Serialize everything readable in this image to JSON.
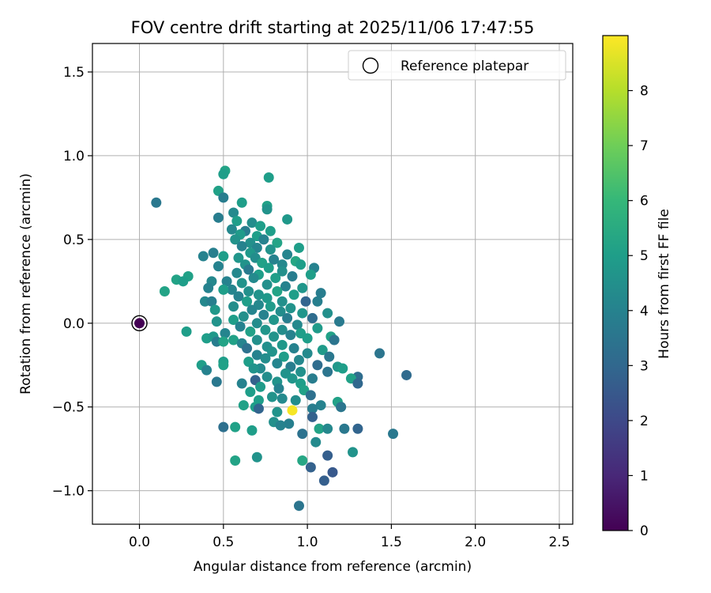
{
  "chart_data": {
    "type": "scatter",
    "title": "FOV centre drift starting at 2025/11/06 17:47:55",
    "xlabel": "Angular distance from reference (arcmin)",
    "ylabel": "Rotation from reference (arcmin)",
    "xlim": [
      -0.28,
      2.58
    ],
    "ylim": [
      -1.2,
      1.67
    ],
    "xticks": [
      0.0,
      0.5,
      1.0,
      1.5,
      2.0,
      2.5
    ],
    "xtick_labels": [
      "0.0",
      "0.5",
      "1.0",
      "1.5",
      "2.0",
      "2.5"
    ],
    "yticks": [
      -1.0,
      -0.5,
      0.0,
      0.5,
      1.0,
      1.5
    ],
    "ytick_labels": [
      "−1.0",
      "−0.5",
      "0.0",
      "0.5",
      "1.0",
      "1.5"
    ],
    "grid": true,
    "legend": {
      "position": "top-right",
      "entries": [
        "Reference platepar"
      ]
    },
    "colorbar": {
      "label": "Hours from first FF file",
      "min": 0,
      "max": 9,
      "ticks": [
        0,
        1,
        2,
        3,
        4,
        5,
        6,
        7,
        8
      ],
      "tick_labels": [
        "0",
        "1",
        "2",
        "3",
        "4",
        "5",
        "6",
        "7",
        "8"
      ],
      "colormap": [
        "#440154",
        "#482878",
        "#3e4989",
        "#31688e",
        "#26828e",
        "#1f9e89",
        "#35b779",
        "#6ece58",
        "#b5de2b",
        "#fde725"
      ]
    },
    "reference_point": {
      "x": 0.0,
      "y": 0.0,
      "hours": 0.0
    },
    "points": [
      [
        0.1,
        0.72,
        3.6
      ],
      [
        0.51,
        0.91,
        5.2
      ],
      [
        0.5,
        0.89,
        5.0
      ],
      [
        0.77,
        0.87,
        5.0
      ],
      [
        0.47,
        0.79,
        5.1
      ],
      [
        0.5,
        0.75,
        3.8
      ],
      [
        0.61,
        0.72,
        5.0
      ],
      [
        0.76,
        0.7,
        5.1
      ],
      [
        0.76,
        0.68,
        4.6
      ],
      [
        0.56,
        0.66,
        4.3
      ],
      [
        0.47,
        0.63,
        3.8
      ],
      [
        0.88,
        0.62,
        4.8
      ],
      [
        0.58,
        0.61,
        5.0
      ],
      [
        0.67,
        0.6,
        4.4
      ],
      [
        0.72,
        0.58,
        5.0
      ],
      [
        0.55,
        0.56,
        4.2
      ],
      [
        0.63,
        0.55,
        3.8
      ],
      [
        0.78,
        0.55,
        5.0
      ],
      [
        0.6,
        0.53,
        4.9
      ],
      [
        0.7,
        0.52,
        5.0
      ],
      [
        0.57,
        0.5,
        4.6
      ],
      [
        0.74,
        0.5,
        4.0
      ],
      [
        0.66,
        0.48,
        4.5
      ],
      [
        0.82,
        0.48,
        5.2
      ],
      [
        0.61,
        0.46,
        4.0
      ],
      [
        0.7,
        0.45,
        4.1
      ],
      [
        0.95,
        0.45,
        5.0
      ],
      [
        0.78,
        0.44,
        4.6
      ],
      [
        0.66,
        0.42,
        4.8
      ],
      [
        0.44,
        0.42,
        3.9
      ],
      [
        0.88,
        0.41,
        4.1
      ],
      [
        0.38,
        0.4,
        4.0
      ],
      [
        0.5,
        0.4,
        5.0
      ],
      [
        0.59,
        0.39,
        4.7
      ],
      [
        0.69,
        0.39,
        4.4
      ],
      [
        0.8,
        0.38,
        4.0
      ],
      [
        0.93,
        0.37,
        5.3
      ],
      [
        0.73,
        0.36,
        5.1
      ],
      [
        0.63,
        0.35,
        4.6
      ],
      [
        0.85,
        0.35,
        4.2
      ],
      [
        0.96,
        0.35,
        5.0
      ],
      [
        0.47,
        0.34,
        4.0
      ],
      [
        0.77,
        0.33,
        5.0
      ],
      [
        1.04,
        0.33,
        4.0
      ],
      [
        0.65,
        0.32,
        3.7
      ],
      [
        0.85,
        0.31,
        4.5
      ],
      [
        0.58,
        0.3,
        4.2
      ],
      [
        0.71,
        0.29,
        5.0
      ],
      [
        0.91,
        0.28,
        3.8
      ],
      [
        1.02,
        0.29,
        5.0
      ],
      [
        0.29,
        0.28,
        5.1
      ],
      [
        0.43,
        0.25,
        4.2
      ],
      [
        0.52,
        0.25,
        4.0
      ],
      [
        0.68,
        0.27,
        4.3
      ],
      [
        0.81,
        0.27,
        5.0
      ],
      [
        0.22,
        0.26,
        5.2
      ],
      [
        0.26,
        0.25,
        5.0
      ],
      [
        0.61,
        0.24,
        4.6
      ],
      [
        0.76,
        0.23,
        4.5
      ],
      [
        0.87,
        0.22,
        4.0
      ],
      [
        0.97,
        0.21,
        4.7
      ],
      [
        0.41,
        0.21,
        4.0
      ],
      [
        0.55,
        0.2,
        4.1
      ],
      [
        0.5,
        0.2,
        5.0
      ],
      [
        0.65,
        0.19,
        4.5
      ],
      [
        0.82,
        0.19,
        5.2
      ],
      [
        0.15,
        0.19,
        5.2
      ],
      [
        0.71,
        0.17,
        4.6
      ],
      [
        0.92,
        0.17,
        5.0
      ],
      [
        1.08,
        0.18,
        3.8
      ],
      [
        0.59,
        0.16,
        4.0
      ],
      [
        0.76,
        0.15,
        4.8
      ],
      [
        0.39,
        0.13,
        4.2
      ],
      [
        0.43,
        0.13,
        3.9
      ],
      [
        0.64,
        0.13,
        5.0
      ],
      [
        0.85,
        0.13,
        4.5
      ],
      [
        0.99,
        0.13,
        2.9
      ],
      [
        1.06,
        0.13,
        3.9
      ],
      [
        0.71,
        0.11,
        4.2
      ],
      [
        0.78,
        0.1,
        4.9
      ],
      [
        0.56,
        0.1,
        4.4
      ],
      [
        0.9,
        0.09,
        4.6
      ],
      [
        0.45,
        0.08,
        4.8
      ],
      [
        0.67,
        0.08,
        4.1
      ],
      [
        0.84,
        0.07,
        4.4
      ],
      [
        0.97,
        0.06,
        4.7
      ],
      [
        1.12,
        0.06,
        4.5
      ],
      [
        0.74,
        0.05,
        4.0
      ],
      [
        0.62,
        0.04,
        4.5
      ],
      [
        0.88,
        0.03,
        3.8
      ],
      [
        1.03,
        0.03,
        3.2
      ],
      [
        0.56,
        0.02,
        5.0
      ],
      [
        0.8,
        0.02,
        4.7
      ],
      [
        0.46,
        0.01,
        4.6
      ],
      [
        0.7,
        0.0,
        4.4
      ],
      [
        0.94,
        -0.01,
        4.2
      ],
      [
        1.19,
        0.01,
        3.7
      ],
      [
        0.6,
        -0.02,
        4.0
      ],
      [
        1.06,
        -0.03,
        4.9
      ],
      [
        0.85,
        -0.04,
        4.4
      ],
      [
        0.75,
        -0.04,
        4.7
      ],
      [
        0.66,
        -0.05,
        5.1
      ],
      [
        0.28,
        -0.05,
        5.0
      ],
      [
        0.51,
        -0.06,
        4.1
      ],
      [
        0.96,
        -0.06,
        5.0
      ],
      [
        0.9,
        -0.07,
        4.0
      ],
      [
        0.8,
        -0.08,
        4.6
      ],
      [
        1.14,
        -0.08,
        5.1
      ],
      [
        0.4,
        -0.09,
        5.0
      ],
      [
        0.44,
        -0.08,
        4.8
      ],
      [
        0.56,
        -0.1,
        5.1
      ],
      [
        0.7,
        -0.1,
        4.5
      ],
      [
        1.0,
        -0.09,
        5.0
      ],
      [
        1.16,
        -0.1,
        3.5
      ],
      [
        0.46,
        -0.11,
        3.8
      ],
      [
        0.5,
        -0.11,
        5.2
      ],
      [
        0.61,
        -0.12,
        4.1
      ],
      [
        0.85,
        -0.13,
        4.8
      ],
      [
        0.76,
        -0.14,
        4.5
      ],
      [
        0.64,
        -0.15,
        3.4
      ],
      [
        0.92,
        -0.15,
        4.0
      ],
      [
        1.09,
        -0.16,
        4.9
      ],
      [
        0.79,
        -0.17,
        4.6
      ],
      [
        1.0,
        -0.18,
        4.3
      ],
      [
        0.7,
        -0.19,
        4.0
      ],
      [
        0.86,
        -0.2,
        5.0
      ],
      [
        1.13,
        -0.2,
        3.6
      ],
      [
        0.75,
        -0.21,
        4.4
      ],
      [
        0.95,
        -0.22,
        4.2
      ],
      [
        0.65,
        -0.23,
        5.0
      ],
      [
        0.5,
        -0.23,
        5.0
      ],
      [
        0.37,
        -0.25,
        5.0
      ],
      [
        1.43,
        -0.18,
        3.5
      ],
      [
        0.82,
        -0.24,
        4.1
      ],
      [
        1.06,
        -0.25,
        3.2
      ],
      [
        1.18,
        -0.26,
        4.8
      ],
      [
        0.9,
        -0.26,
        3.8
      ],
      [
        0.5,
        -0.25,
        5.1
      ],
      [
        0.72,
        -0.27,
        4.3
      ],
      [
        1.21,
        -0.27,
        5.0
      ],
      [
        0.4,
        -0.28,
        4.0
      ],
      [
        0.96,
        -0.29,
        4.5
      ],
      [
        1.12,
        -0.29,
        3.5
      ],
      [
        0.68,
        -0.27,
        4.6
      ],
      [
        0.87,
        -0.3,
        4.6
      ],
      [
        1.59,
        -0.31,
        3.1
      ],
      [
        1.3,
        -0.32,
        3.2
      ],
      [
        0.76,
        -0.32,
        4.4
      ],
      [
        0.91,
        -0.33,
        4.7
      ],
      [
        0.69,
        -0.34,
        2.8
      ],
      [
        1.03,
        -0.33,
        3.8
      ],
      [
        1.26,
        -0.33,
        5.1
      ],
      [
        0.46,
        -0.35,
        3.6
      ],
      [
        0.82,
        -0.35,
        4.6
      ],
      [
        0.61,
        -0.36,
        4.0
      ],
      [
        0.96,
        -0.36,
        5.0
      ],
      [
        1.3,
        -0.36,
        3.0
      ],
      [
        0.72,
        -0.38,
        4.9
      ],
      [
        0.83,
        -0.39,
        4.0
      ],
      [
        0.98,
        -0.4,
        5.1
      ],
      [
        0.66,
        -0.41,
        5.0
      ],
      [
        1.02,
        -0.43,
        3.3
      ],
      [
        0.79,
        -0.44,
        4.6
      ],
      [
        0.85,
        -0.45,
        4.3
      ],
      [
        0.93,
        -0.46,
        4.4
      ],
      [
        0.71,
        -0.46,
        5.0
      ],
      [
        1.18,
        -0.47,
        5.1
      ],
      [
        0.62,
        -0.49,
        5.1
      ],
      [
        0.69,
        -0.5,
        5.0
      ],
      [
        0.71,
        -0.51,
        2.9
      ],
      [
        1.08,
        -0.49,
        4.0
      ],
      [
        1.03,
        -0.51,
        3.8
      ],
      [
        1.2,
        -0.5,
        5.3
      ],
      [
        1.2,
        -0.5,
        3.5
      ],
      [
        0.91,
        -0.52,
        8.9
      ],
      [
        0.82,
        -0.53,
        4.6
      ],
      [
        1.03,
        -0.56,
        2.8
      ],
      [
        0.8,
        -0.59,
        4.5
      ],
      [
        0.89,
        -0.6,
        3.9
      ],
      [
        0.84,
        -0.61,
        4.0
      ],
      [
        0.5,
        -0.62,
        3.3
      ],
      [
        0.57,
        -0.62,
        5.1
      ],
      [
        1.07,
        -0.63,
        5.2
      ],
      [
        1.12,
        -0.63,
        4.2
      ],
      [
        1.22,
        -0.63,
        3.6
      ],
      [
        1.3,
        -0.63,
        2.9
      ],
      [
        0.67,
        -0.64,
        5.0
      ],
      [
        0.97,
        -0.66,
        3.4
      ],
      [
        1.51,
        -0.66,
        3.6
      ],
      [
        1.05,
        -0.71,
        4.3
      ],
      [
        1.27,
        -0.77,
        4.6
      ],
      [
        1.12,
        -0.79,
        2.7
      ],
      [
        0.7,
        -0.8,
        4.6
      ],
      [
        0.97,
        -0.82,
        5.3
      ],
      [
        0.57,
        -0.82,
        5.2
      ],
      [
        1.02,
        -0.86,
        2.8
      ],
      [
        1.15,
        -0.89,
        2.5
      ],
      [
        1.1,
        -0.94,
        2.7
      ],
      [
        0.95,
        -1.09,
        3.5
      ]
    ]
  }
}
